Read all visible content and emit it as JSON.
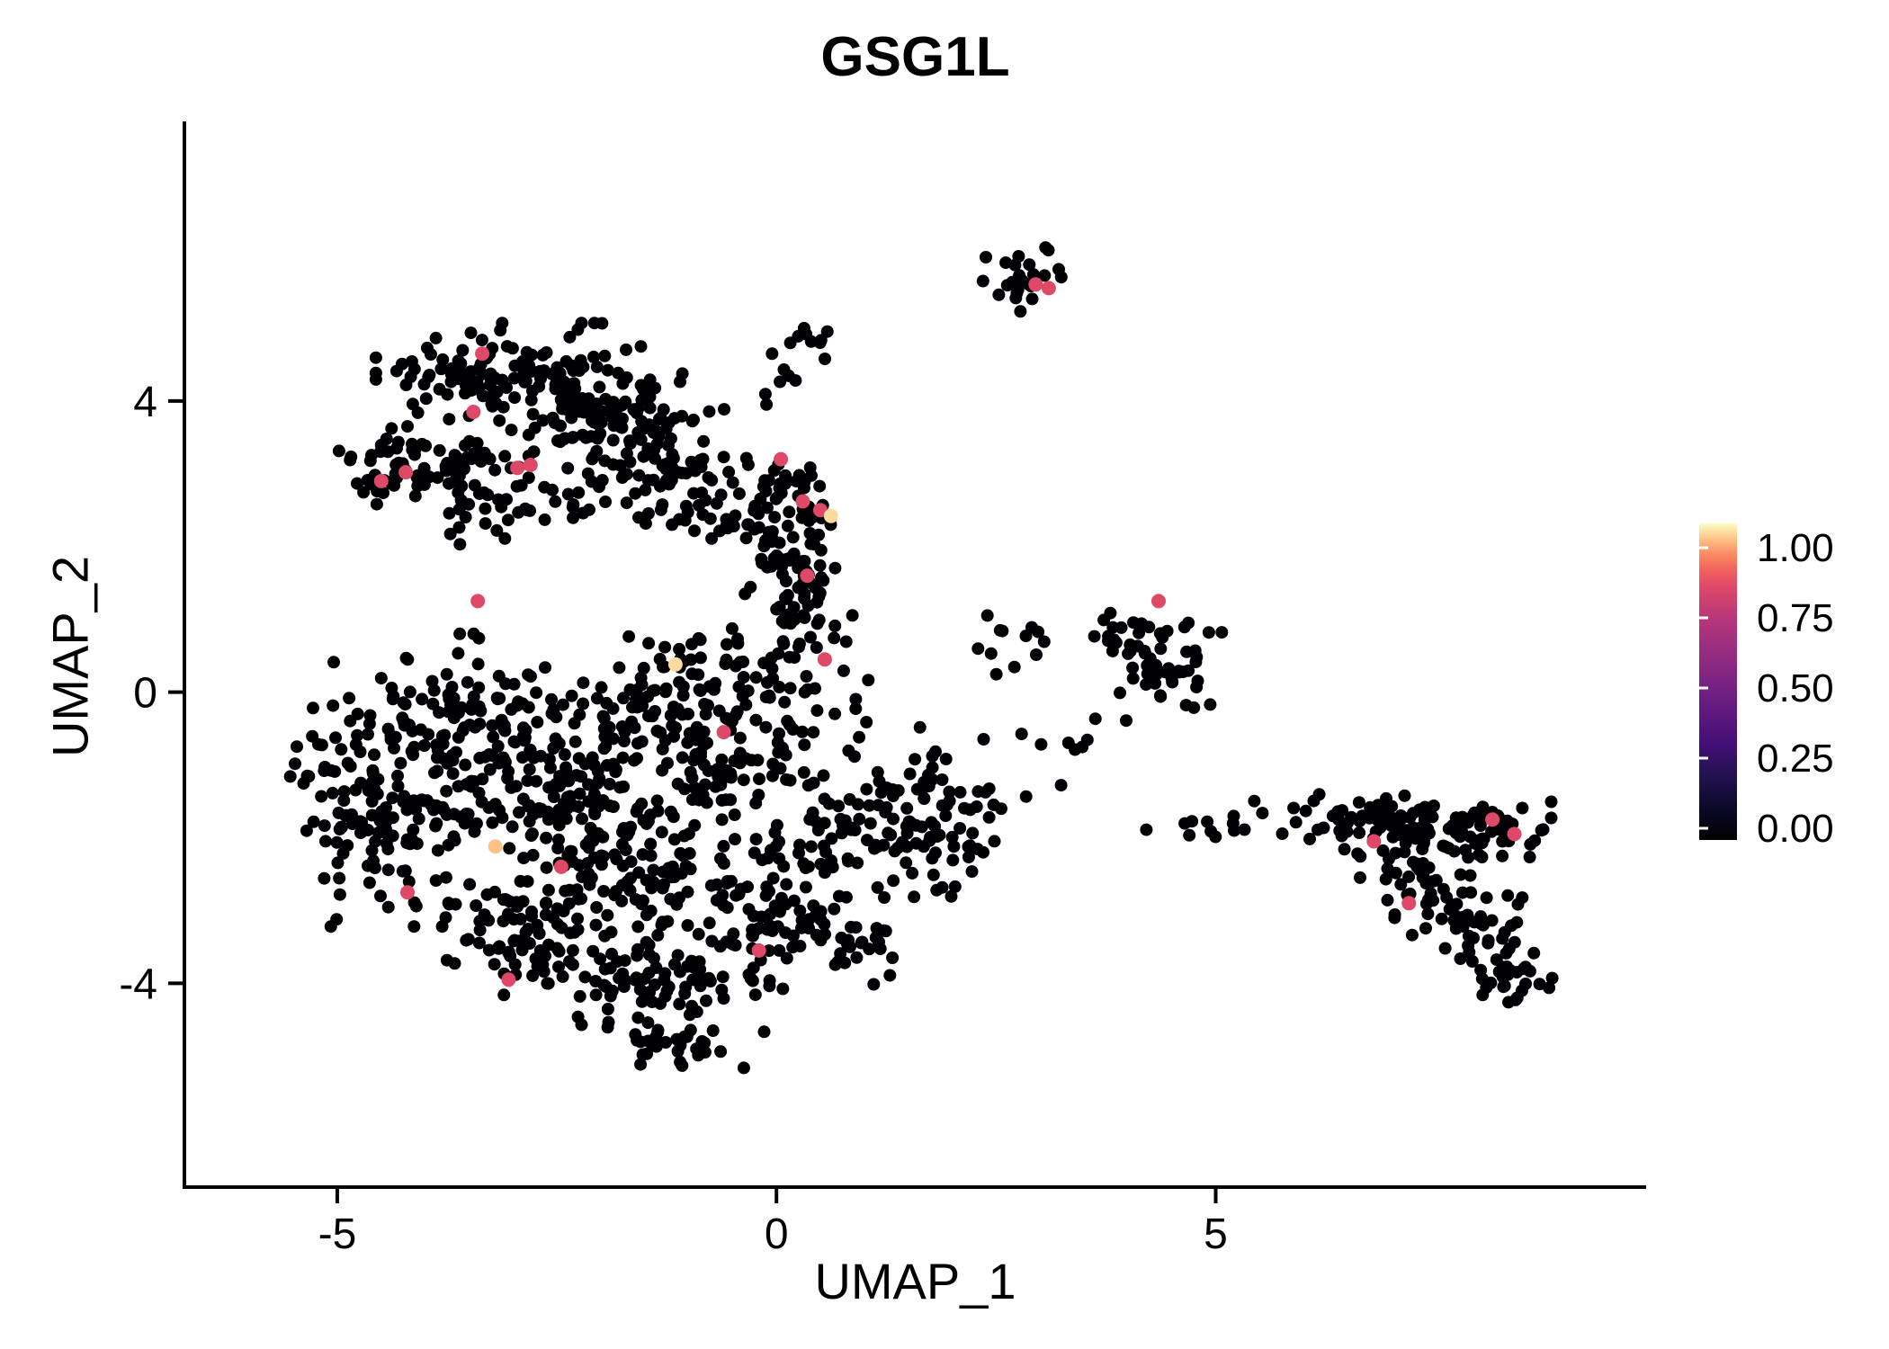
{
  "figure": {
    "title": "GSG1L",
    "xlabel": "UMAP_1",
    "ylabel": "UMAP_2"
  },
  "legend": {
    "tick_labels": [
      "1.00",
      "0.75",
      "0.50",
      "0.25",
      "0.00"
    ],
    "tick_values": [
      1.0,
      0.75,
      0.5,
      0.25,
      0.0
    ]
  },
  "chart_data": {
    "type": "scatter",
    "title": "GSG1L",
    "xlabel": "UMAP_1",
    "ylabel": "UMAP_2",
    "xlim": [
      -6.74,
      9.9
    ],
    "ylim": [
      -6.8,
      7.84
    ],
    "x_ticks": [
      -5,
      0,
      5
    ],
    "y_ticks": [
      4,
      0,
      -4
    ],
    "grid": false,
    "legend_position": "right",
    "colorbar_range": [
      0,
      1
    ],
    "point_radius_px": 7,
    "highlight_radius_px": 8,
    "background_points_color": "#000004",
    "colormap_stops": [
      [
        0,
        "#000004"
      ],
      [
        0.1,
        "#0c0927"
      ],
      [
        0.2,
        "#231151"
      ],
      [
        0.3,
        "#410f75"
      ],
      [
        0.4,
        "#5f187f"
      ],
      [
        0.5,
        "#7b2382"
      ],
      [
        0.6,
        "#982d80"
      ],
      [
        0.7,
        "#b73779"
      ],
      [
        0.8,
        "#de4968"
      ],
      [
        0.85,
        "#f1605d"
      ],
      [
        0.9,
        "#fb8861"
      ],
      [
        0.95,
        "#fec287"
      ],
      [
        1,
        "#fcfdbf"
      ]
    ],
    "seed": 20240613,
    "clusters": [
      [
        -3.0,
        4.35,
        0.65,
        0.3,
        120
      ],
      [
        -2.0,
        3.7,
        0.6,
        0.4,
        130
      ],
      [
        -3.9,
        3.15,
        0.45,
        0.25,
        60
      ],
      [
        -1.2,
        2.95,
        0.45,
        0.35,
        55
      ],
      [
        -3.0,
        2.55,
        0.55,
        0.22,
        35
      ],
      [
        -0.45,
        2.4,
        0.28,
        0.3,
        22
      ],
      [
        -4.4,
        2.95,
        0.3,
        0.25,
        20
      ],
      [
        0.2,
        2.05,
        0.25,
        0.45,
        65
      ],
      [
        0.3,
        1.0,
        0.28,
        0.3,
        30
      ],
      [
        0.15,
        2.9,
        0.3,
        0.2,
        20
      ],
      [
        0.45,
        4.75,
        0.25,
        0.15,
        10
      ],
      [
        -0.1,
        4.15,
        0.25,
        0.2,
        6
      ],
      [
        2.8,
        5.75,
        0.2,
        0.22,
        24
      ],
      [
        -3.6,
        -0.4,
        0.6,
        0.5,
        120
      ],
      [
        -4.4,
        -1.9,
        0.45,
        0.55,
        110
      ],
      [
        -2.6,
        -1.4,
        0.6,
        0.55,
        120
      ],
      [
        -1.5,
        -0.3,
        0.55,
        0.4,
        85
      ],
      [
        -0.6,
        -1.1,
        0.5,
        0.5,
        75
      ],
      [
        -1.6,
        -2.5,
        0.6,
        0.5,
        100
      ],
      [
        -2.9,
        -3.2,
        0.5,
        0.4,
        80
      ],
      [
        -1.4,
        -4.0,
        0.55,
        0.33,
        85
      ],
      [
        -0.4,
        -3.1,
        0.45,
        0.45,
        65
      ],
      [
        0.6,
        -2.1,
        0.45,
        0.5,
        65
      ],
      [
        1.5,
        -1.4,
        0.4,
        0.45,
        55
      ],
      [
        -0.6,
        0.3,
        0.45,
        0.25,
        35
      ],
      [
        -1.1,
        -4.9,
        0.4,
        0.18,
        25
      ],
      [
        0.8,
        -3.4,
        0.35,
        0.3,
        35
      ],
      [
        1.9,
        -2.2,
        0.3,
        0.3,
        25
      ],
      [
        -5.0,
        -0.9,
        0.25,
        0.4,
        20
      ],
      [
        0.3,
        -0.2,
        0.4,
        0.3,
        25
      ],
      [
        2.6,
        0.55,
        0.35,
        0.3,
        12
      ],
      [
        3.3,
        -0.85,
        0.3,
        0.25,
        8
      ],
      [
        2.2,
        -1.6,
        0.25,
        0.25,
        10
      ],
      [
        4.35,
        0.45,
        0.3,
        0.35,
        55
      ],
      [
        3.7,
        0.85,
        0.25,
        0.18,
        8
      ],
      [
        4.8,
        -1.85,
        0.45,
        0.15,
        10
      ],
      [
        5.8,
        -1.75,
        0.25,
        0.12,
        7
      ],
      [
        6.6,
        -1.75,
        0.3,
        0.18,
        28
      ],
      [
        7.3,
        -1.95,
        0.35,
        0.25,
        55
      ],
      [
        8.1,
        -1.9,
        0.3,
        0.22,
        45
      ],
      [
        7.3,
        -2.7,
        0.3,
        0.25,
        35
      ],
      [
        7.9,
        -3.3,
        0.3,
        0.25,
        35
      ],
      [
        8.45,
        -3.9,
        0.3,
        0.15,
        30
      ]
    ],
    "highlight_points": [
      [
        -3.35,
        4.65,
        0.8
      ],
      [
        -3.45,
        3.85,
        0.8
      ],
      [
        -4.5,
        2.9,
        0.8
      ],
      [
        -4.22,
        3.02,
        0.8
      ],
      [
        -2.95,
        3.08,
        0.8
      ],
      [
        -2.8,
        3.12,
        0.8
      ],
      [
        0.05,
        3.2,
        0.8
      ],
      [
        0.3,
        2.62,
        0.8
      ],
      [
        0.5,
        2.5,
        0.8
      ],
      [
        0.62,
        2.42,
        0.97
      ],
      [
        0.35,
        1.6,
        0.8
      ],
      [
        0.55,
        0.45,
        0.8
      ],
      [
        -3.4,
        1.25,
        0.8
      ],
      [
        -1.15,
        0.38,
        0.97
      ],
      [
        -0.6,
        -0.55,
        0.8
      ],
      [
        -2.45,
        -2.4,
        0.8
      ],
      [
        -3.2,
        -2.12,
        0.95
      ],
      [
        -4.2,
        -2.75,
        0.8
      ],
      [
        -3.05,
        -3.95,
        0.8
      ],
      [
        -0.2,
        -3.55,
        0.8
      ],
      [
        4.35,
        1.25,
        0.8
      ],
      [
        2.95,
        5.6,
        0.8
      ],
      [
        3.1,
        5.55,
        0.8
      ],
      [
        6.8,
        -2.05,
        0.8
      ],
      [
        8.15,
        -1.75,
        0.8
      ],
      [
        8.4,
        -1.95,
        0.8
      ],
      [
        7.2,
        -2.9,
        0.8
      ]
    ]
  }
}
